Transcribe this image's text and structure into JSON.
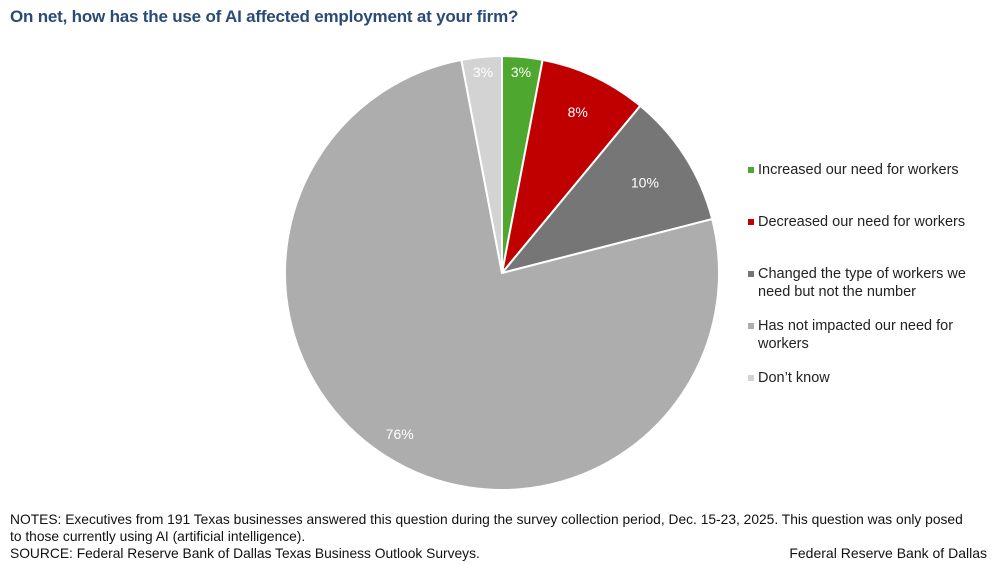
{
  "chart_data": {
    "type": "pie",
    "title": "On net, how has the use of AI affected employment at your firm?",
    "slices": [
      {
        "name": "Increased our need for workers",
        "value": 3,
        "label": "3%",
        "color": "#4ea72e"
      },
      {
        "name": "Decreased our need for workers",
        "value": 8,
        "label": "8%",
        "color": "#c00000"
      },
      {
        "name": "Changed the type of workers we need but not the number",
        "value": 10,
        "label": "10%",
        "color": "#767676"
      },
      {
        "name": "Has not impacted our need for workers",
        "value": 76,
        "label": "76%",
        "color": "#adadad"
      },
      {
        "name": "Don’t know",
        "value": 3,
        "label": "3%",
        "color": "#d3d3d3"
      }
    ],
    "start": "top",
    "direction": "clockwise",
    "legend_position": "right"
  },
  "notes": "NOTES: Executives from 191 Texas businesses answered this question during the survey collection period, Dec. 15-23, 2025. This question was only posed to those currently  using AI (artificial intelligence).",
  "source": "SOURCE: Federal Reserve Bank of Dallas Texas Business Outlook Surveys.",
  "credit": "Federal Reserve Bank of Dallas"
}
